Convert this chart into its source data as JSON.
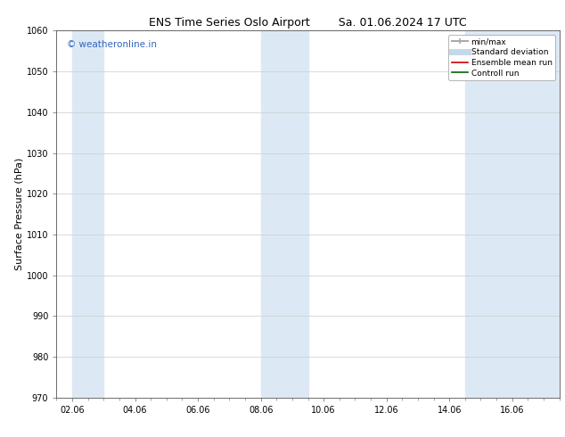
{
  "title_left": "ENS Time Series Oslo Airport",
  "title_right": "Sa. 01.06.2024 17 UTC",
  "ylabel": "Surface Pressure (hPa)",
  "ylim": [
    970,
    1060
  ],
  "yticks": [
    970,
    980,
    990,
    1000,
    1010,
    1020,
    1030,
    1040,
    1050,
    1060
  ],
  "xlim_start": 1.5,
  "xlim_end": 17.5,
  "xtick_labels": [
    "02.06",
    "04.06",
    "06.06",
    "08.06",
    "10.06",
    "12.06",
    "14.06",
    "16.06"
  ],
  "xtick_positions": [
    2,
    4,
    6,
    8,
    10,
    12,
    14,
    16
  ],
  "background_color": "#ffffff",
  "plot_bg_color": "#ffffff",
  "watermark": "© weatheronline.in",
  "watermark_color": "#3366bb",
  "shaded_bands": [
    {
      "x_start": 2.0,
      "x_end": 3.0,
      "color": "#dce9f5",
      "alpha": 1.0
    },
    {
      "x_start": 8.0,
      "x_end": 9.5,
      "color": "#dce9f5",
      "alpha": 1.0
    },
    {
      "x_start": 14.5,
      "x_end": 17.5,
      "color": "#dce9f5",
      "alpha": 1.0
    }
  ],
  "legend_entries": [
    {
      "label": "min/max",
      "color": "#aaaaaa",
      "lw": 1.5,
      "type": "line_cap"
    },
    {
      "label": "Standard deviation",
      "color": "#c5d8ea",
      "lw": 5,
      "type": "line"
    },
    {
      "label": "Ensemble mean run",
      "color": "#cc0000",
      "lw": 1.2,
      "type": "line"
    },
    {
      "label": "Controll run",
      "color": "#006600",
      "lw": 1.2,
      "type": "line"
    }
  ],
  "grid_color": "#cccccc",
  "title_fontsize": 9,
  "ylabel_fontsize": 8,
  "tick_fontsize": 7,
  "legend_fontsize": 6.5,
  "watermark_fontsize": 7.5
}
